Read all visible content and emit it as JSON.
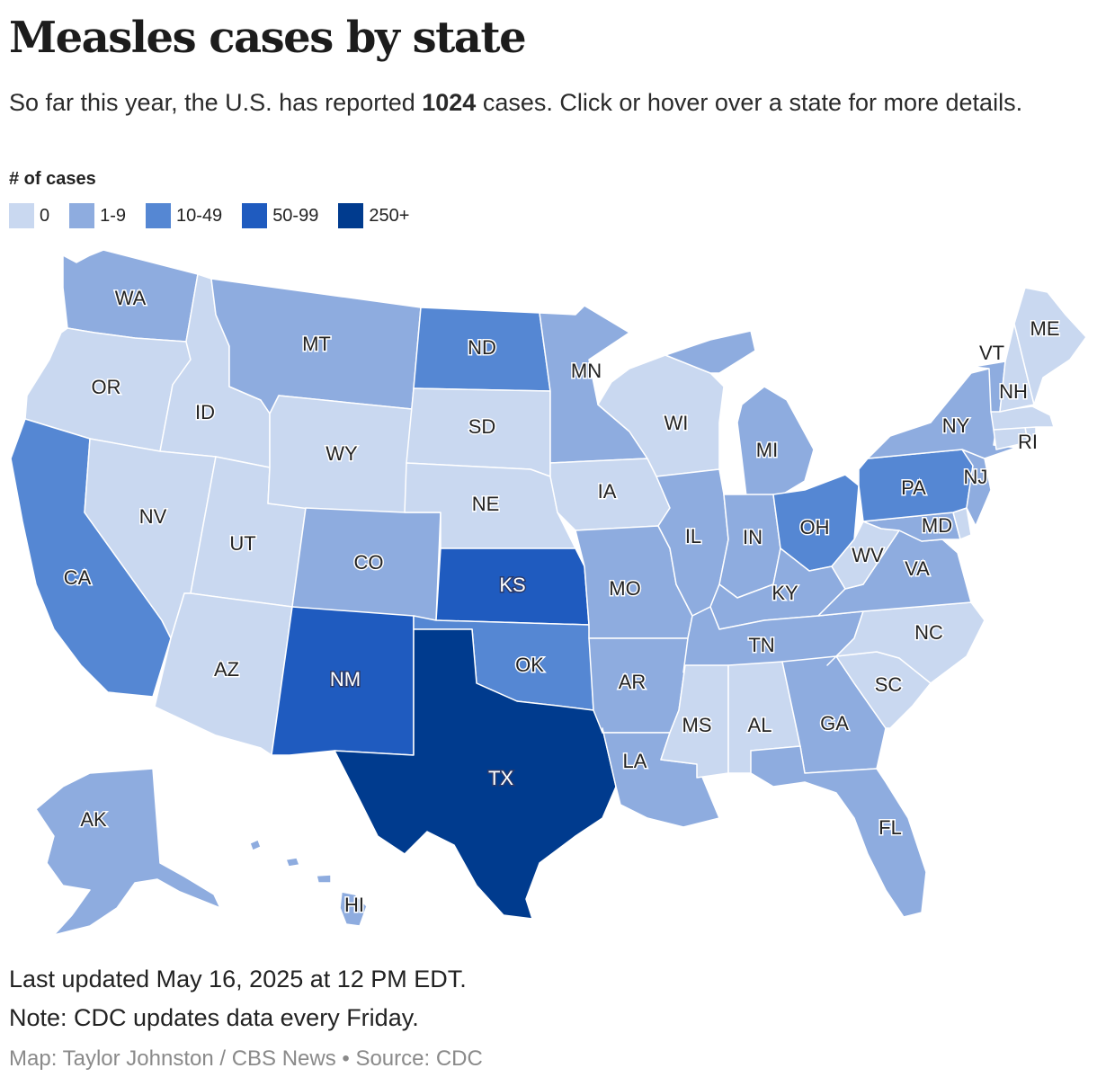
{
  "header": {
    "title": "Measles cases by state",
    "subtitle_before": "So far this year, the U.S. has reported ",
    "subtitle_count": "1024",
    "subtitle_after": " cases. Click or hover over a state for more details."
  },
  "legend": {
    "title": "# of cases",
    "items": [
      {
        "label": "0",
        "color": "#c9d8f0"
      },
      {
        "label": "1-9",
        "color": "#8eacdf"
      },
      {
        "label": "10-49",
        "color": "#5587d3"
      },
      {
        "label": "50-99",
        "color": "#1f5bbf"
      },
      {
        "label": "250+",
        "color": "#003b8e"
      }
    ]
  },
  "states": [
    {
      "abbr": "WA",
      "bin": 1
    },
    {
      "abbr": "OR",
      "bin": 0
    },
    {
      "abbr": "CA",
      "bin": 2
    },
    {
      "abbr": "ID",
      "bin": 0
    },
    {
      "abbr": "NV",
      "bin": 0
    },
    {
      "abbr": "UT",
      "bin": 0
    },
    {
      "abbr": "AZ",
      "bin": 0
    },
    {
      "abbr": "MT",
      "bin": 1
    },
    {
      "abbr": "WY",
      "bin": 0
    },
    {
      "abbr": "CO",
      "bin": 1
    },
    {
      "abbr": "NM",
      "bin": 3
    },
    {
      "abbr": "ND",
      "bin": 2
    },
    {
      "abbr": "SD",
      "bin": 0
    },
    {
      "abbr": "NE",
      "bin": 0
    },
    {
      "abbr": "KS",
      "bin": 3
    },
    {
      "abbr": "OK",
      "bin": 2
    },
    {
      "abbr": "TX",
      "bin": 4
    },
    {
      "abbr": "MN",
      "bin": 1
    },
    {
      "abbr": "IA",
      "bin": 0
    },
    {
      "abbr": "MO",
      "bin": 1
    },
    {
      "abbr": "AR",
      "bin": 1
    },
    {
      "abbr": "LA",
      "bin": 1
    },
    {
      "abbr": "WI",
      "bin": 0
    },
    {
      "abbr": "IL",
      "bin": 1
    },
    {
      "abbr": "MI",
      "bin": 1
    },
    {
      "abbr": "IN",
      "bin": 1
    },
    {
      "abbr": "OH",
      "bin": 2
    },
    {
      "abbr": "KY",
      "bin": 1
    },
    {
      "abbr": "TN",
      "bin": 1
    },
    {
      "abbr": "MS",
      "bin": 0
    },
    {
      "abbr": "AL",
      "bin": 0
    },
    {
      "abbr": "GA",
      "bin": 1
    },
    {
      "abbr": "FL",
      "bin": 1
    },
    {
      "abbr": "SC",
      "bin": 0
    },
    {
      "abbr": "NC",
      "bin": 0
    },
    {
      "abbr": "VA",
      "bin": 1
    },
    {
      "abbr": "WV",
      "bin": 0
    },
    {
      "abbr": "MD",
      "bin": 1
    },
    {
      "abbr": "DE",
      "bin": 0
    },
    {
      "abbr": "PA",
      "bin": 2
    },
    {
      "abbr": "NJ",
      "bin": 1
    },
    {
      "abbr": "NY",
      "bin": 1
    },
    {
      "abbr": "CT",
      "bin": 0
    },
    {
      "abbr": "RI",
      "bin": 0
    },
    {
      "abbr": "MA",
      "bin": 0
    },
    {
      "abbr": "VT",
      "bin": 1
    },
    {
      "abbr": "NH",
      "bin": 0
    },
    {
      "abbr": "ME",
      "bin": 0
    },
    {
      "abbr": "AK",
      "bin": 1
    },
    {
      "abbr": "HI",
      "bin": 1
    }
  ],
  "footer": {
    "last_updated": "Last updated May 16, 2025 at 12 PM EDT.",
    "note": "Note: CDC updates data every Friday.",
    "credit": "Map: Taylor Johnston / CBS News • Source: CDC"
  }
}
